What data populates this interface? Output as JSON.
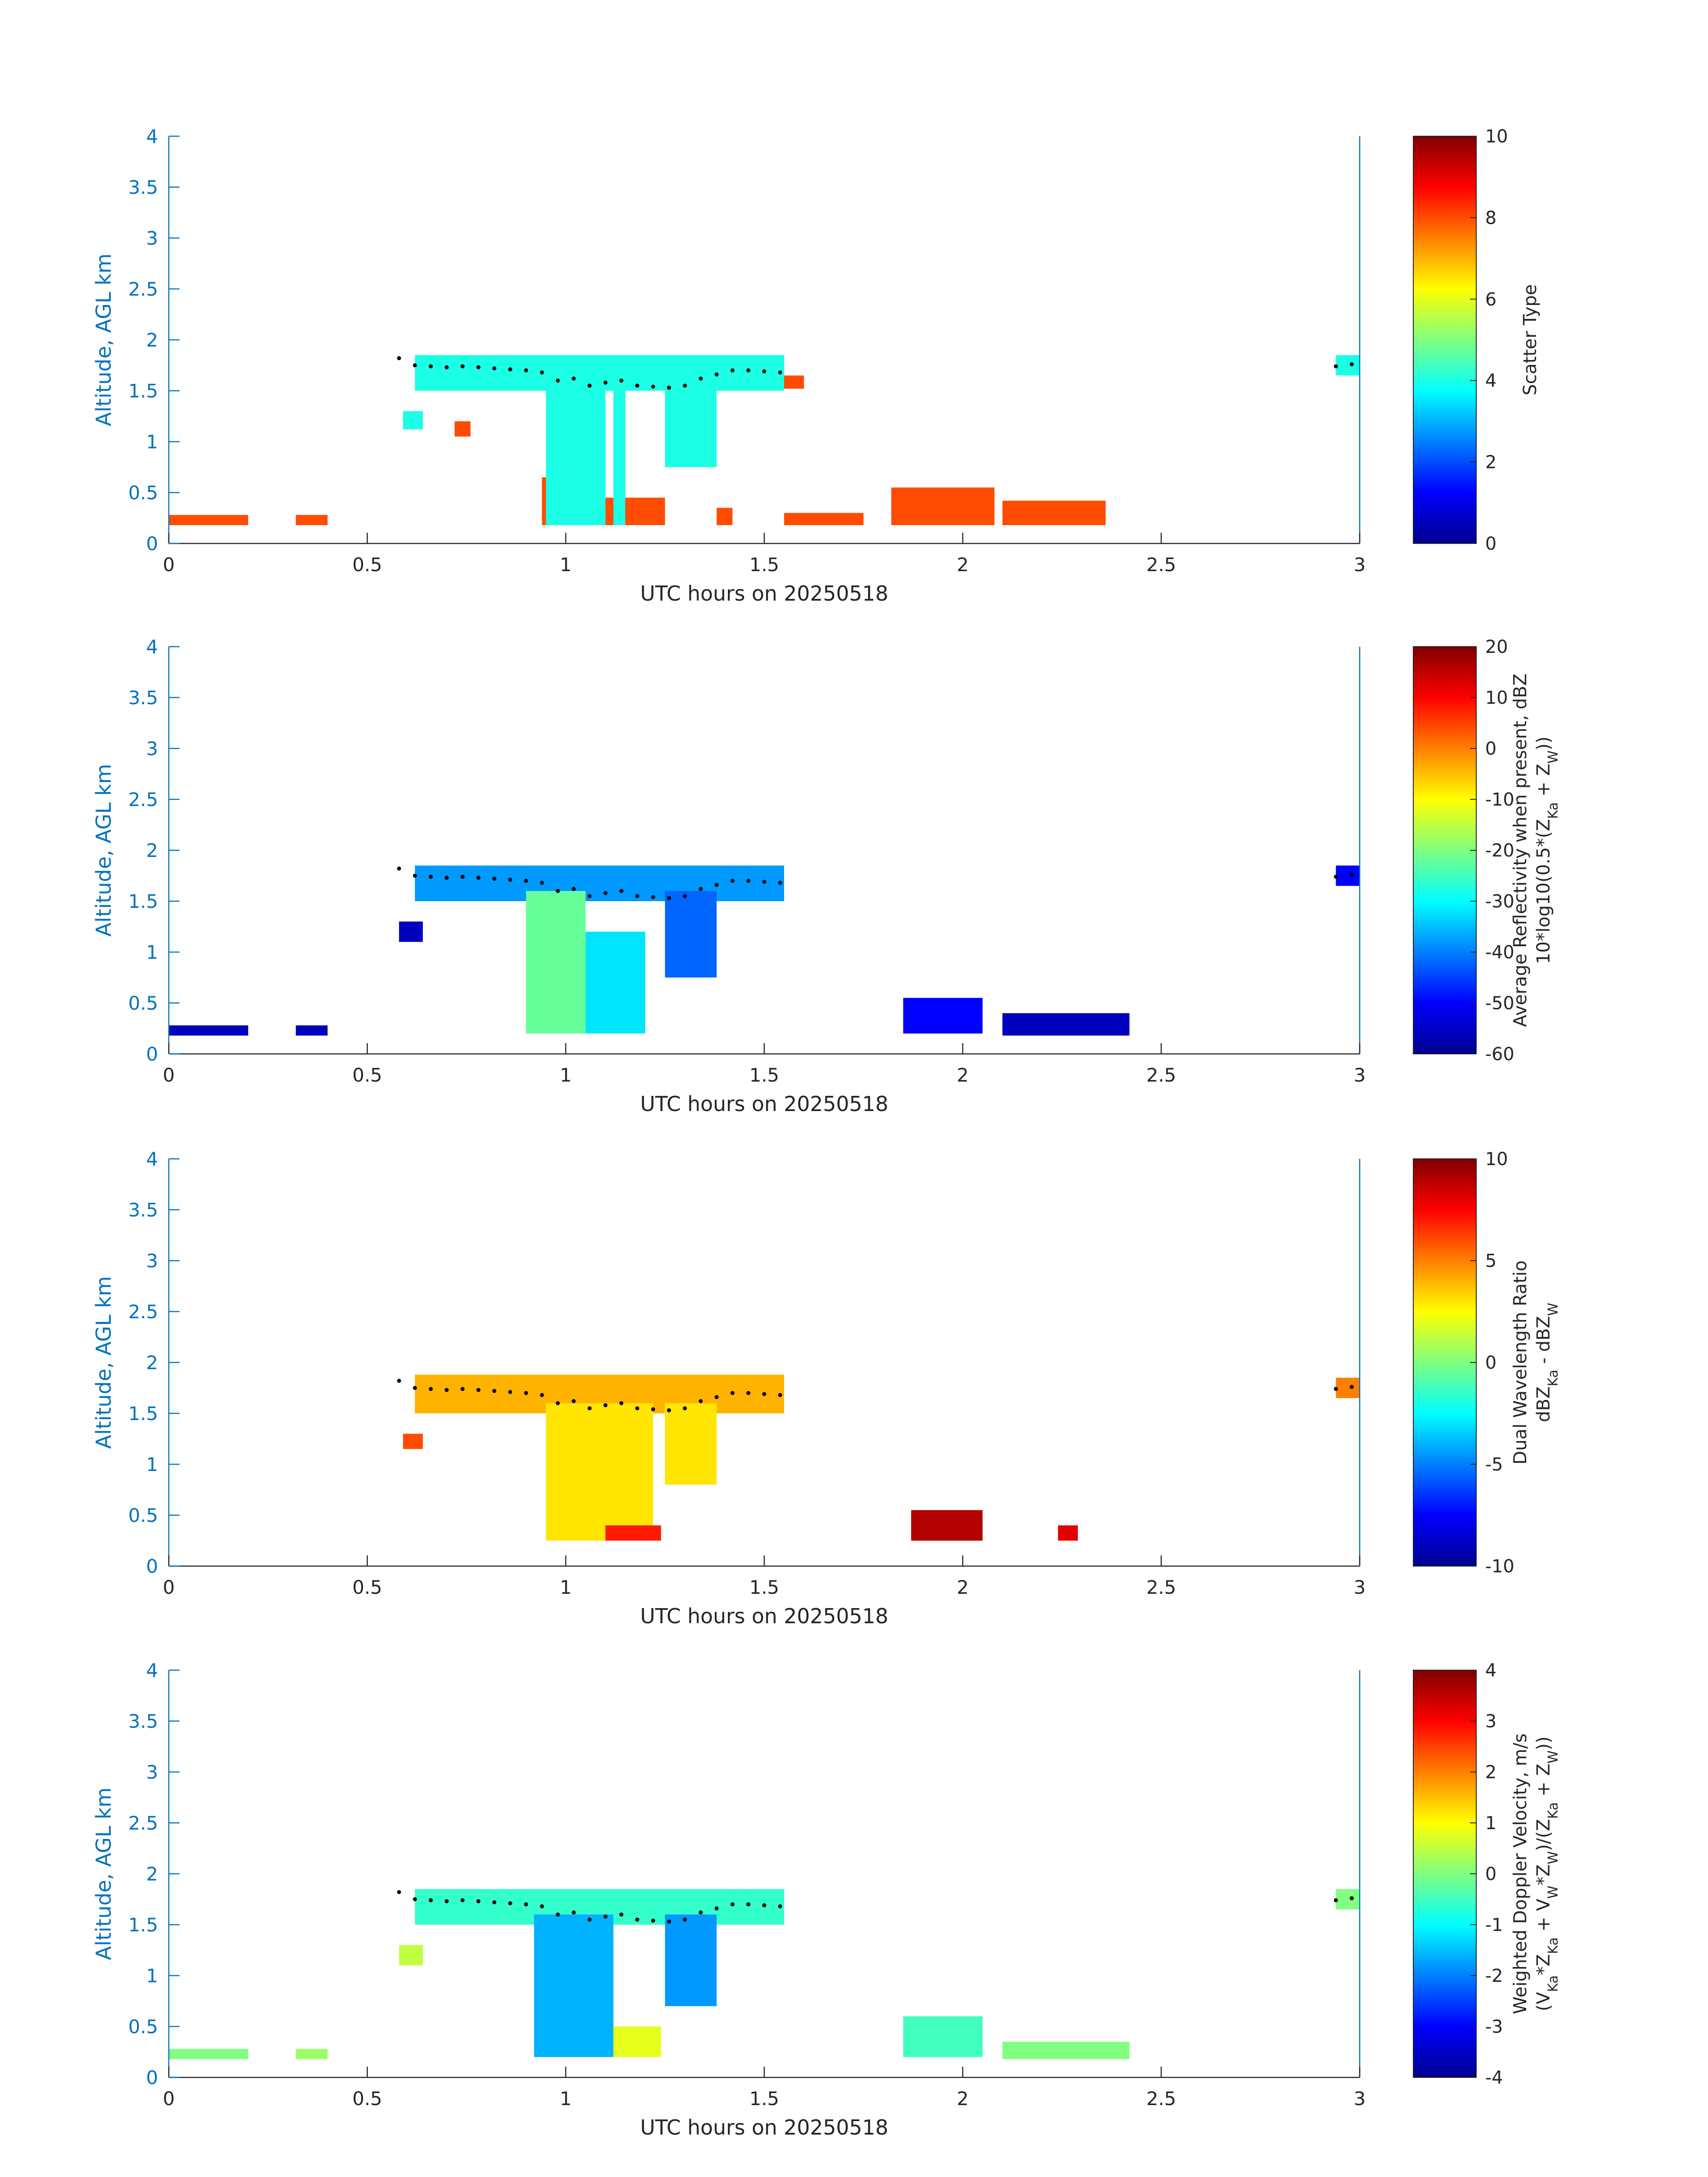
{
  "chart_data": [
    {
      "type": "heatmap",
      "title": "",
      "xlabel": "UTC hours on 20250518",
      "ylabel": "Altitude, AGL km",
      "xlim": [
        0,
        3
      ],
      "ylim": [
        0,
        4
      ],
      "xticks": [
        "0",
        "0.5",
        "1",
        "1.5",
        "2",
        "2.5",
        "3"
      ],
      "yticks": [
        "0",
        "0.5",
        "1",
        "1.5",
        "2",
        "2.5",
        "3",
        "3.5",
        "4"
      ],
      "colorbar": {
        "label_lines": [
          "Scatter Type"
        ],
        "range": [
          0,
          10
        ],
        "ticks": [
          "0",
          "2",
          "4",
          "6",
          "8",
          "10"
        ]
      },
      "regions": [
        {
          "x": [
            0.0,
            0.2
          ],
          "y": [
            0.18,
            0.28
          ],
          "value": 8
        },
        {
          "x": [
            0.32,
            0.4
          ],
          "y": [
            0.18,
            0.28
          ],
          "value": 8
        },
        {
          "x": [
            0.94,
            0.96
          ],
          "y": [
            0.18,
            0.65
          ],
          "value": 8
        },
        {
          "x": [
            1.1,
            1.25
          ],
          "y": [
            0.18,
            0.45
          ],
          "value": 8
        },
        {
          "x": [
            1.38,
            1.42
          ],
          "y": [
            0.18,
            0.35
          ],
          "value": 8
        },
        {
          "x": [
            1.55,
            1.75
          ],
          "y": [
            0.18,
            0.3
          ],
          "value": 8
        },
        {
          "x": [
            1.82,
            2.08
          ],
          "y": [
            0.18,
            0.55
          ],
          "value": 8
        },
        {
          "x": [
            2.1,
            2.36
          ],
          "y": [
            0.18,
            0.42
          ],
          "value": 8
        },
        {
          "x": [
            0.62,
            1.55
          ],
          "y": [
            1.5,
            1.85
          ],
          "value": 4
        },
        {
          "x": [
            0.95,
            1.1
          ],
          "y": [
            0.18,
            1.6
          ],
          "value": 4
        },
        {
          "x": [
            1.12,
            1.15
          ],
          "y": [
            0.18,
            1.6
          ],
          "value": 4
        },
        {
          "x": [
            1.25,
            1.38
          ],
          "y": [
            0.75,
            1.6
          ],
          "value": 4
        },
        {
          "x": [
            0.59,
            0.64
          ],
          "y": [
            1.12,
            1.3
          ],
          "value": 4
        },
        {
          "x": [
            2.94,
            3.0
          ],
          "y": [
            1.65,
            1.85
          ],
          "value": 4
        },
        {
          "x": [
            1.55,
            1.6
          ],
          "y": [
            1.52,
            1.65
          ],
          "value": 8
        },
        {
          "x": [
            0.72,
            0.76
          ],
          "y": [
            1.05,
            1.2
          ],
          "value": 8
        }
      ],
      "cloud_base": {
        "x": [
          0.58,
          0.62,
          0.66,
          0.7,
          0.74,
          0.78,
          0.82,
          0.86,
          0.9,
          0.94,
          0.98,
          1.02,
          1.06,
          1.1,
          1.14,
          1.18,
          1.22,
          1.26,
          1.3,
          1.34,
          1.38,
          1.42,
          1.46,
          1.5,
          1.54,
          2.94,
          2.98
        ],
        "y": [
          1.82,
          1.75,
          1.74,
          1.73,
          1.74,
          1.73,
          1.72,
          1.71,
          1.7,
          1.68,
          1.6,
          1.62,
          1.55,
          1.58,
          1.6,
          1.55,
          1.54,
          1.53,
          1.55,
          1.62,
          1.66,
          1.7,
          1.7,
          1.69,
          1.68,
          1.74,
          1.76
        ]
      }
    },
    {
      "type": "heatmap",
      "title": "",
      "xlabel": "UTC hours on 20250518",
      "ylabel": "Altitude, AGL km",
      "xlim": [
        0,
        3
      ],
      "ylim": [
        0,
        4
      ],
      "xticks": [
        "0",
        "0.5",
        "1",
        "1.5",
        "2",
        "2.5",
        "3"
      ],
      "yticks": [
        "0",
        "0.5",
        "1",
        "1.5",
        "2",
        "2.5",
        "3",
        "3.5",
        "4"
      ],
      "colorbar": {
        "label_lines": [
          "Average Reflectivity when present, dBZ",
          "10*log10(0.5*(Z_Ka + Z_W))"
        ],
        "range": [
          -60,
          20
        ],
        "ticks": [
          "-60",
          "-50",
          "-40",
          "-30",
          "-20",
          "-10",
          "0",
          "10",
          "20"
        ]
      },
      "regions": [
        {
          "x": [
            0.0,
            0.2
          ],
          "y": [
            0.18,
            0.28
          ],
          "value": -55
        },
        {
          "x": [
            0.32,
            0.4
          ],
          "y": [
            0.18,
            0.28
          ],
          "value": -55
        },
        {
          "x": [
            0.62,
            1.55
          ],
          "y": [
            1.5,
            1.85
          ],
          "value": -38
        },
        {
          "x": [
            0.9,
            1.05
          ],
          "y": [
            0.2,
            1.6
          ],
          "value": -22
        },
        {
          "x": [
            1.05,
            1.2
          ],
          "y": [
            0.2,
            1.2
          ],
          "value": -32
        },
        {
          "x": [
            1.25,
            1.38
          ],
          "y": [
            0.75,
            1.6
          ],
          "value": -42
        },
        {
          "x": [
            1.85,
            2.05
          ],
          "y": [
            0.2,
            0.55
          ],
          "value": -50
        },
        {
          "x": [
            2.1,
            2.42
          ],
          "y": [
            0.18,
            0.4
          ],
          "value": -55
        },
        {
          "x": [
            0.58,
            0.64
          ],
          "y": [
            1.1,
            1.3
          ],
          "value": -55
        },
        {
          "x": [
            2.94,
            3.0
          ],
          "y": [
            1.65,
            1.85
          ],
          "value": -50
        }
      ],
      "cloud_base": {
        "x": [
          0.58,
          0.62,
          0.66,
          0.7,
          0.74,
          0.78,
          0.82,
          0.86,
          0.9,
          0.94,
          0.98,
          1.02,
          1.06,
          1.1,
          1.14,
          1.18,
          1.22,
          1.26,
          1.3,
          1.34,
          1.38,
          1.42,
          1.46,
          1.5,
          1.54,
          2.94,
          2.98
        ],
        "y": [
          1.82,
          1.75,
          1.74,
          1.73,
          1.74,
          1.73,
          1.72,
          1.71,
          1.7,
          1.68,
          1.6,
          1.62,
          1.55,
          1.58,
          1.6,
          1.55,
          1.54,
          1.53,
          1.55,
          1.62,
          1.66,
          1.7,
          1.7,
          1.69,
          1.68,
          1.74,
          1.76
        ]
      }
    },
    {
      "type": "heatmap",
      "title": "",
      "xlabel": "UTC hours on 20250518",
      "ylabel": "Altitude, AGL km",
      "xlim": [
        0,
        3
      ],
      "ylim": [
        0,
        4
      ],
      "xticks": [
        "0",
        "0.5",
        "1",
        "1.5",
        "2",
        "2.5",
        "3"
      ],
      "yticks": [
        "0",
        "0.5",
        "1",
        "1.5",
        "2",
        "2.5",
        "3",
        "3.5",
        "4"
      ],
      "colorbar": {
        "label_lines": [
          "Dual Wavelength Ratio",
          "dBZ_Ka - dBZ_W"
        ],
        "range": [
          -10,
          10
        ],
        "ticks": [
          "-10",
          "-5",
          "0",
          "5",
          "10"
        ]
      },
      "regions": [
        {
          "x": [
            0.62,
            1.55
          ],
          "y": [
            1.5,
            1.88
          ],
          "value": 4
        },
        {
          "x": [
            0.95,
            1.22
          ],
          "y": [
            0.25,
            1.6
          ],
          "value": 3
        },
        {
          "x": [
            1.25,
            1.38
          ],
          "y": [
            0.8,
            1.6
          ],
          "value": 3
        },
        {
          "x": [
            1.1,
            1.24
          ],
          "y": [
            0.25,
            0.4
          ],
          "value": 7
        },
        {
          "x": [
            1.87,
            2.05
          ],
          "y": [
            0.25,
            0.55
          ],
          "value": 9
        },
        {
          "x": [
            2.24,
            2.29
          ],
          "y": [
            0.25,
            0.4
          ],
          "value": 8
        },
        {
          "x": [
            2.94,
            3.0
          ],
          "y": [
            1.65,
            1.85
          ],
          "value": 5
        },
        {
          "x": [
            0.59,
            0.64
          ],
          "y": [
            1.15,
            1.3
          ],
          "value": 6
        }
      ],
      "cloud_base": {
        "x": [
          0.58,
          0.62,
          0.66,
          0.7,
          0.74,
          0.78,
          0.82,
          0.86,
          0.9,
          0.94,
          0.98,
          1.02,
          1.06,
          1.1,
          1.14,
          1.18,
          1.22,
          1.26,
          1.3,
          1.34,
          1.38,
          1.42,
          1.46,
          1.5,
          1.54,
          2.94,
          2.98
        ],
        "y": [
          1.82,
          1.75,
          1.74,
          1.73,
          1.74,
          1.73,
          1.72,
          1.71,
          1.7,
          1.68,
          1.6,
          1.62,
          1.55,
          1.58,
          1.6,
          1.55,
          1.54,
          1.53,
          1.55,
          1.62,
          1.66,
          1.7,
          1.7,
          1.69,
          1.68,
          1.74,
          1.76
        ]
      }
    },
    {
      "type": "heatmap",
      "title": "",
      "xlabel": "UTC hours on 20250518",
      "ylabel": "Altitude, AGL km",
      "xlim": [
        0,
        3
      ],
      "ylim": [
        0,
        4
      ],
      "xticks": [
        "0",
        "0.5",
        "1",
        "1.5",
        "2",
        "2.5",
        "3"
      ],
      "yticks": [
        "0",
        "0.5",
        "1",
        "1.5",
        "2",
        "2.5",
        "3",
        "3.5",
        "4"
      ],
      "colorbar": {
        "label_lines": [
          "Weighted Doppler Velocity, m/s",
          "(V_Ka*Z_Ka + V_W*Z_W)/(Z_Ka + Z_W))"
        ],
        "range": [
          -4,
          4
        ],
        "ticks": [
          "-4",
          "-3",
          "-2",
          "-1",
          "0",
          "1",
          "2",
          "3",
          "4"
        ]
      },
      "regions": [
        {
          "x": [
            0.0,
            0.2
          ],
          "y": [
            0.18,
            0.28
          ],
          "value": 0
        },
        {
          "x": [
            0.32,
            0.4
          ],
          "y": [
            0.18,
            0.28
          ],
          "value": 0.2
        },
        {
          "x": [
            0.62,
            1.55
          ],
          "y": [
            1.5,
            1.85
          ],
          "value": -0.6
        },
        {
          "x": [
            0.92,
            1.12
          ],
          "y": [
            0.2,
            1.6
          ],
          "value": -1.6
        },
        {
          "x": [
            1.12,
            1.24
          ],
          "y": [
            0.2,
            0.5
          ],
          "value": 0.8
        },
        {
          "x": [
            1.25,
            1.38
          ],
          "y": [
            0.7,
            1.6
          ],
          "value": -1.8
        },
        {
          "x": [
            1.85,
            2.05
          ],
          "y": [
            0.2,
            0.6
          ],
          "value": -0.5
        },
        {
          "x": [
            2.1,
            2.42
          ],
          "y": [
            0.18,
            0.35
          ],
          "value": 0
        },
        {
          "x": [
            0.58,
            0.64
          ],
          "y": [
            1.1,
            1.3
          ],
          "value": 0.5
        },
        {
          "x": [
            2.94,
            3.0
          ],
          "y": [
            1.65,
            1.85
          ],
          "value": 0
        }
      ],
      "cloud_base": {
        "x": [
          0.58,
          0.62,
          0.66,
          0.7,
          0.74,
          0.78,
          0.82,
          0.86,
          0.9,
          0.94,
          0.98,
          1.02,
          1.06,
          1.1,
          1.14,
          1.18,
          1.22,
          1.26,
          1.3,
          1.34,
          1.38,
          1.42,
          1.46,
          1.5,
          1.54,
          2.94,
          2.98
        ],
        "y": [
          1.82,
          1.75,
          1.74,
          1.73,
          1.74,
          1.73,
          1.72,
          1.71,
          1.7,
          1.68,
          1.6,
          1.62,
          1.55,
          1.58,
          1.6,
          1.55,
          1.54,
          1.53,
          1.55,
          1.62,
          1.66,
          1.7,
          1.7,
          1.69,
          1.68,
          1.74,
          1.76
        ]
      }
    }
  ]
}
